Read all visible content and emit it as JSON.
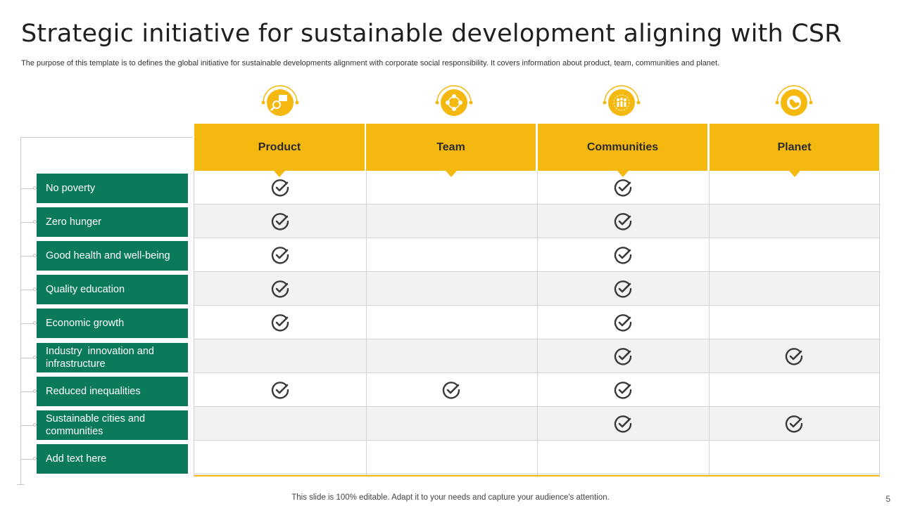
{
  "title": "Strategic initiative for sustainable development aligning with CSR",
  "subtitle": "The purpose of this template is to defines the global initiative for sustainable developments alignment with corporate social responsibility. It covers information about product, team, communities and planet.",
  "columns": [
    {
      "label": "Product",
      "icon": "magnifier-box-icon"
    },
    {
      "label": "Team",
      "icon": "team-cycle-icon"
    },
    {
      "label": "Communities",
      "icon": "people-group-icon"
    },
    {
      "label": "Planet",
      "icon": "globe-icon"
    }
  ],
  "rows": [
    {
      "label": "No poverty",
      "checks": [
        true,
        false,
        true,
        false
      ]
    },
    {
      "label": "Zero hunger",
      "checks": [
        true,
        false,
        true,
        false
      ]
    },
    {
      "label": "Good health and well-being",
      "checks": [
        true,
        false,
        true,
        false
      ]
    },
    {
      "label": "Quality education",
      "checks": [
        true,
        false,
        true,
        false
      ]
    },
    {
      "label": "Economic growth",
      "checks": [
        true,
        false,
        true,
        false
      ]
    },
    {
      "label": "Industry  innovation and infrastructure",
      "checks": [
        false,
        false,
        true,
        true
      ]
    },
    {
      "label": "Reduced inequalities",
      "checks": [
        true,
        true,
        true,
        false
      ]
    },
    {
      "label": "Sustainable cities and communities",
      "checks": [
        false,
        false,
        true,
        true
      ]
    },
    {
      "label": "Add text here",
      "checks": [
        false,
        false,
        false,
        false
      ]
    }
  ],
  "footer": "This slide is 100% editable. Adapt it to your needs and capture your audience's attention.",
  "page_number": "5",
  "colors": {
    "accent": "#f5b80f",
    "row_label_bg": "#0b7a5c",
    "check": "#3a3a3a"
  }
}
